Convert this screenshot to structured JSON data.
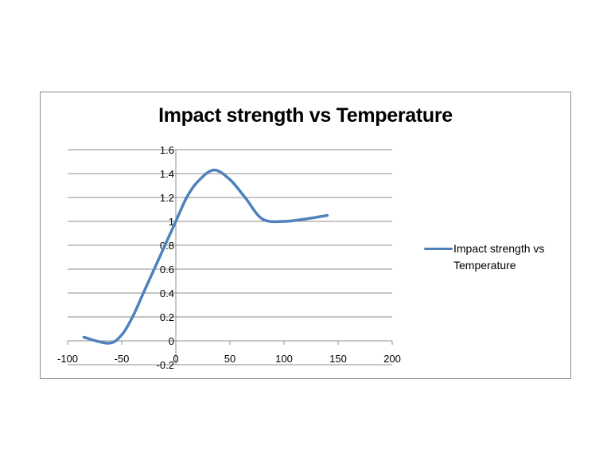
{
  "chart_data": {
    "type": "line",
    "title": "Impact strength vs Temperature",
    "xlabel": "",
    "ylabel": "",
    "xlim": [
      -100,
      200
    ],
    "ylim": [
      -0.2,
      1.6
    ],
    "x_ticks": [
      "-100",
      "-50",
      "0",
      "50",
      "100",
      "150",
      "200"
    ],
    "y_ticks": [
      "1.6",
      "1.4",
      "1.2",
      "1",
      "0.8",
      "0.6",
      "0.4",
      "0.2",
      "0",
      "-0.2"
    ],
    "x_tick_values": [
      -100,
      -50,
      0,
      50,
      100,
      150,
      200
    ],
    "y_tick_values": [
      1.6,
      1.4,
      1.2,
      1.0,
      0.8,
      0.6,
      0.4,
      0.2,
      0,
      -0.2
    ],
    "grid": true,
    "smooth": true,
    "legend_position": "right",
    "series": [
      {
        "name": "Impact strength vs Temperature",
        "color": "#4f81bd",
        "x": [
          -85,
          -62,
          -50,
          -40,
          -30,
          -20,
          -10,
          0,
          10,
          20,
          35,
          50,
          64,
          80,
          100,
          120,
          140
        ],
        "y": [
          0.03,
          -0.02,
          0.05,
          0.2,
          0.4,
          0.6,
          0.8,
          1.0,
          1.2,
          1.33,
          1.43,
          1.35,
          1.2,
          1.02,
          1.0,
          1.02,
          1.05
        ]
      }
    ]
  }
}
